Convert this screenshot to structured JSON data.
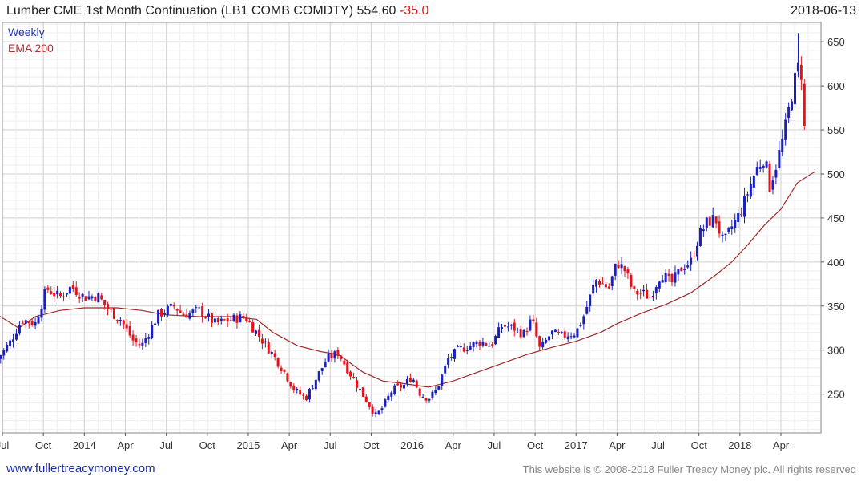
{
  "header": {
    "title": "Lumber CME 1st Month Continuation (LB1 COMB COMDTY) 554.60",
    "change": "-35.0",
    "date": "2018-06-13"
  },
  "legend": {
    "weekly": "Weekly",
    "ema": "EMA 200"
  },
  "footer": {
    "link": "www.fullertreacymoney.com",
    "copyright": "This website is © 2008-2018 Fuller Treacy Money plc. All rights reserved"
  },
  "colors": {
    "up": "#1a1fbf",
    "down": "#e8111a",
    "ema": "#a02828",
    "grid": "#dddddd",
    "axis": "#555555"
  },
  "chart_data": {
    "type": "candlestick",
    "title": "Lumber CME 1st Month Continuation (LB1 COMB COMDTY) 554.60 -35.0",
    "frequency": "Weekly",
    "x_range": [
      2013.5,
      2018.46
    ],
    "ylim": [
      206,
      672
    ],
    "yticks": [
      250,
      300,
      350,
      400,
      450,
      500,
      550,
      600,
      650
    ],
    "xticks": [
      {
        "label": "Jul",
        "t": 2013.5
      },
      {
        "label": "Oct",
        "t": 2013.75
      },
      {
        "label": "2014",
        "t": 2014.0
      },
      {
        "label": "Apr",
        "t": 2014.25
      },
      {
        "label": "Jul",
        "t": 2014.5
      },
      {
        "label": "Oct",
        "t": 2014.75
      },
      {
        "label": "2015",
        "t": 2015.0
      },
      {
        "label": "Apr",
        "t": 2015.25
      },
      {
        "label": "Jul",
        "t": 2015.5
      },
      {
        "label": "Oct",
        "t": 2015.75
      },
      {
        "label": "2016",
        "t": 2016.0
      },
      {
        "label": "Apr",
        "t": 2016.25
      },
      {
        "label": "Jul",
        "t": 2016.5
      },
      {
        "label": "Oct",
        "t": 2016.75
      },
      {
        "label": "2017",
        "t": 2017.0
      },
      {
        "label": "Apr",
        "t": 2017.25
      },
      {
        "label": "Jul",
        "t": 2017.5
      },
      {
        "label": "Oct",
        "t": 2017.75
      },
      {
        "label": "2018",
        "t": 2018.0
      },
      {
        "label": "Apr",
        "t": 2018.25
      }
    ],
    "close_path": [
      [
        2013.47,
        290
      ],
      [
        2013.55,
        310
      ],
      [
        2013.62,
        335
      ],
      [
        2013.7,
        330
      ],
      [
        2013.77,
        370
      ],
      [
        2013.85,
        360
      ],
      [
        2013.92,
        372
      ],
      [
        2014.0,
        360
      ],
      [
        2014.08,
        362
      ],
      [
        2014.15,
        345
      ],
      [
        2014.22,
        335
      ],
      [
        2014.3,
        310
      ],
      [
        2014.35,
        305
      ],
      [
        2014.45,
        340
      ],
      [
        2014.55,
        350
      ],
      [
        2014.6,
        340
      ],
      [
        2014.7,
        345
      ],
      [
        2014.8,
        330
      ],
      [
        2014.9,
        335
      ],
      [
        2014.98,
        338
      ],
      [
        2015.05,
        320
      ],
      [
        2015.15,
        295
      ],
      [
        2015.22,
        275
      ],
      [
        2015.28,
        255
      ],
      [
        2015.35,
        245
      ],
      [
        2015.42,
        270
      ],
      [
        2015.48,
        290
      ],
      [
        2015.55,
        297
      ],
      [
        2015.6,
        280
      ],
      [
        2015.68,
        255
      ],
      [
        2015.73,
        240
      ],
      [
        2015.78,
        225
      ],
      [
        2015.82,
        235
      ],
      [
        2015.88,
        255
      ],
      [
        2015.95,
        260
      ],
      [
        2016.0,
        270
      ],
      [
        2016.05,
        250
      ],
      [
        2016.1,
        245
      ],
      [
        2016.15,
        255
      ],
      [
        2016.22,
        290
      ],
      [
        2016.28,
        300
      ],
      [
        2016.35,
        305
      ],
      [
        2016.42,
        310
      ],
      [
        2016.48,
        305
      ],
      [
        2016.55,
        328
      ],
      [
        2016.62,
        325
      ],
      [
        2016.68,
        318
      ],
      [
        2016.73,
        335
      ],
      [
        2016.78,
        300
      ],
      [
        2016.85,
        320
      ],
      [
        2016.9,
        315
      ],
      [
        2016.95,
        318
      ],
      [
        2017.0,
        320
      ],
      [
        2017.05,
        340
      ],
      [
        2017.12,
        380
      ],
      [
        2017.2,
        370
      ],
      [
        2017.25,
        400
      ],
      [
        2017.3,
        390
      ],
      [
        2017.35,
        365
      ],
      [
        2017.4,
        365
      ],
      [
        2017.45,
        360
      ],
      [
        2017.52,
        388
      ],
      [
        2017.58,
        375
      ],
      [
        2017.65,
        395
      ],
      [
        2017.7,
        400
      ],
      [
        2017.75,
        430
      ],
      [
        2017.8,
        445
      ],
      [
        2017.85,
        450
      ],
      [
        2017.9,
        420
      ],
      [
        2017.95,
        440
      ],
      [
        2018.0,
        455
      ],
      [
        2018.05,
        480
      ],
      [
        2018.1,
        505
      ],
      [
        2018.15,
        520
      ],
      [
        2018.18,
        485
      ],
      [
        2018.22,
        510
      ],
      [
        2018.27,
        545
      ],
      [
        2018.32,
        595
      ],
      [
        2018.36,
        625
      ],
      [
        2018.38,
        610
      ],
      [
        2018.41,
        605
      ],
      [
        2018.44,
        575
      ],
      [
        2018.46,
        555
      ]
    ],
    "ema_200": [
      [
        2013.47,
        340
      ],
      [
        2013.6,
        325
      ],
      [
        2013.7,
        338
      ],
      [
        2013.85,
        345
      ],
      [
        2014.0,
        348
      ],
      [
        2014.2,
        348
      ],
      [
        2014.35,
        345
      ],
      [
        2014.5,
        340
      ],
      [
        2014.7,
        338
      ],
      [
        2014.9,
        338
      ],
      [
        2015.05,
        335
      ],
      [
        2015.15,
        320
      ],
      [
        2015.3,
        305
      ],
      [
        2015.45,
        298
      ],
      [
        2015.55,
        295
      ],
      [
        2015.7,
        275
      ],
      [
        2015.82,
        265
      ],
      [
        2015.95,
        262
      ],
      [
        2016.1,
        258
      ],
      [
        2016.25,
        265
      ],
      [
        2016.4,
        275
      ],
      [
        2016.55,
        285
      ],
      [
        2016.7,
        295
      ],
      [
        2016.85,
        303
      ],
      [
        2017.0,
        310
      ],
      [
        2017.15,
        320
      ],
      [
        2017.25,
        330
      ],
      [
        2017.4,
        342
      ],
      [
        2017.55,
        352
      ],
      [
        2017.7,
        365
      ],
      [
        2017.85,
        385
      ],
      [
        2017.95,
        400
      ],
      [
        2018.05,
        420
      ],
      [
        2018.15,
        442
      ],
      [
        2018.25,
        460
      ],
      [
        2018.35,
        490
      ],
      [
        2018.46,
        503
      ]
    ],
    "last_close": 554.6,
    "change": -35.0
  }
}
